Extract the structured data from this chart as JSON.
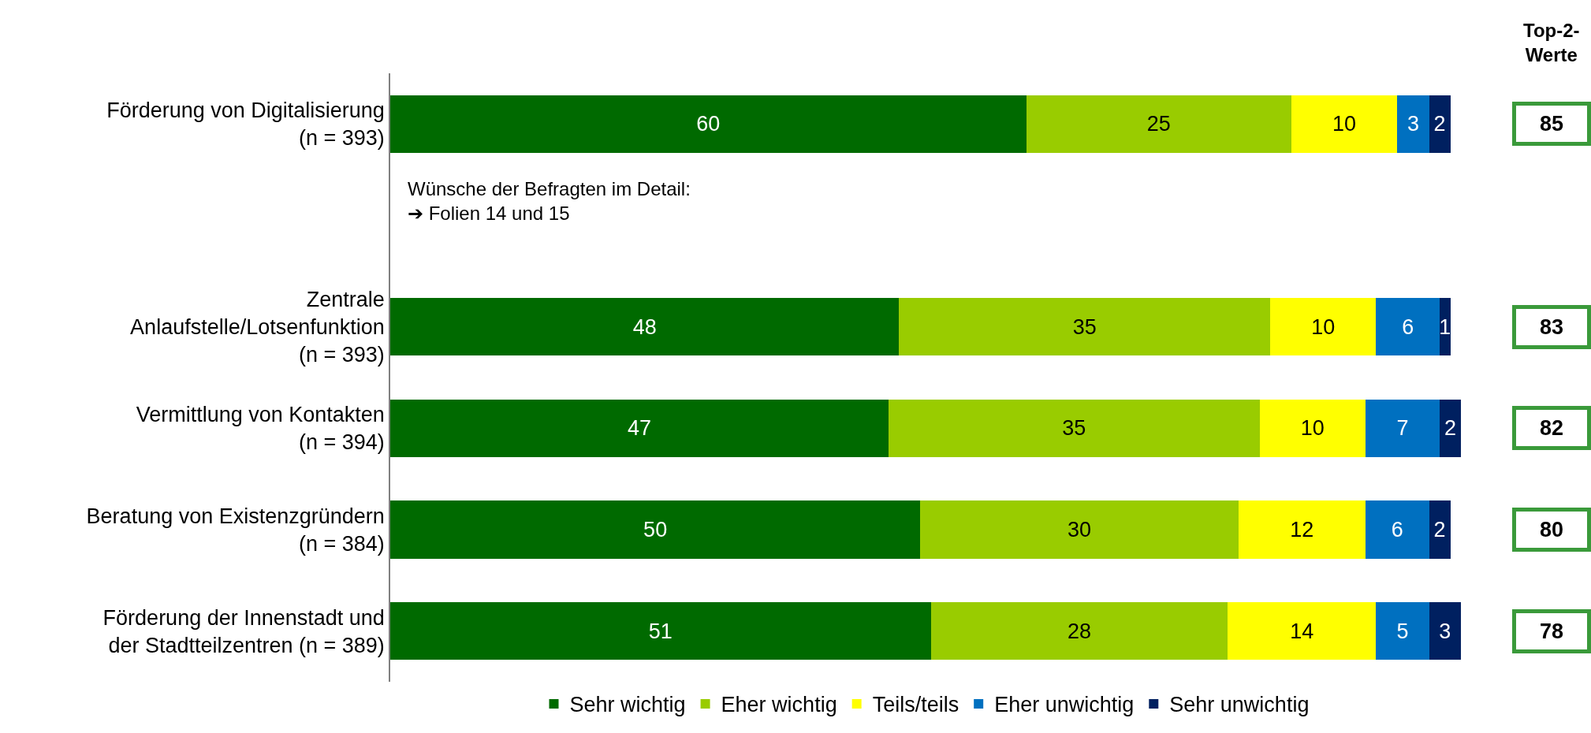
{
  "chart_data": {
    "type": "bar",
    "orientation": "horizontal",
    "stacked": true,
    "categories": [
      "Förderung von Digitalisierung\n(n = 393)",
      null,
      "Zentrale\nAnlaufstelle/Lotsenfunktion\n(n = 393)",
      "Vermittlung von Kontakten\n(n = 394)",
      "Beratung von Existenzgründern\n(n = 384)",
      "Förderung der Innenstadt und\nder Stadtteilzentren (n = 389)"
    ],
    "series": [
      {
        "name": "Sehr wichtig",
        "color": "#006a00",
        "values": [
          60,
          null,
          48,
          47,
          50,
          51
        ]
      },
      {
        "name": "Eher wichtig",
        "color": "#99cc00",
        "values": [
          25,
          null,
          35,
          35,
          30,
          28
        ]
      },
      {
        "name": "Teils/teils",
        "color": "#ffff00",
        "values": [
          10,
          null,
          10,
          10,
          12,
          14
        ]
      },
      {
        "name": "Eher unwichtig",
        "color": "#0070c0",
        "values": [
          3,
          null,
          6,
          7,
          6,
          5
        ]
      },
      {
        "name": "Sehr unwichtig",
        "color": "#002060",
        "values": [
          2,
          null,
          1,
          2,
          2,
          3
        ]
      }
    ],
    "xlim": [
      0,
      101
    ],
    "tick_labels": "y",
    "data_labels": true,
    "legend": "bottom",
    "grid": false,
    "annotations": [
      "Top-2-\nWerte",
      "Wünsche der Befragten im Detail:\n➔ Folien 14 und 15",
      "85",
      "83",
      "82",
      "80",
      "78"
    ]
  }
}
